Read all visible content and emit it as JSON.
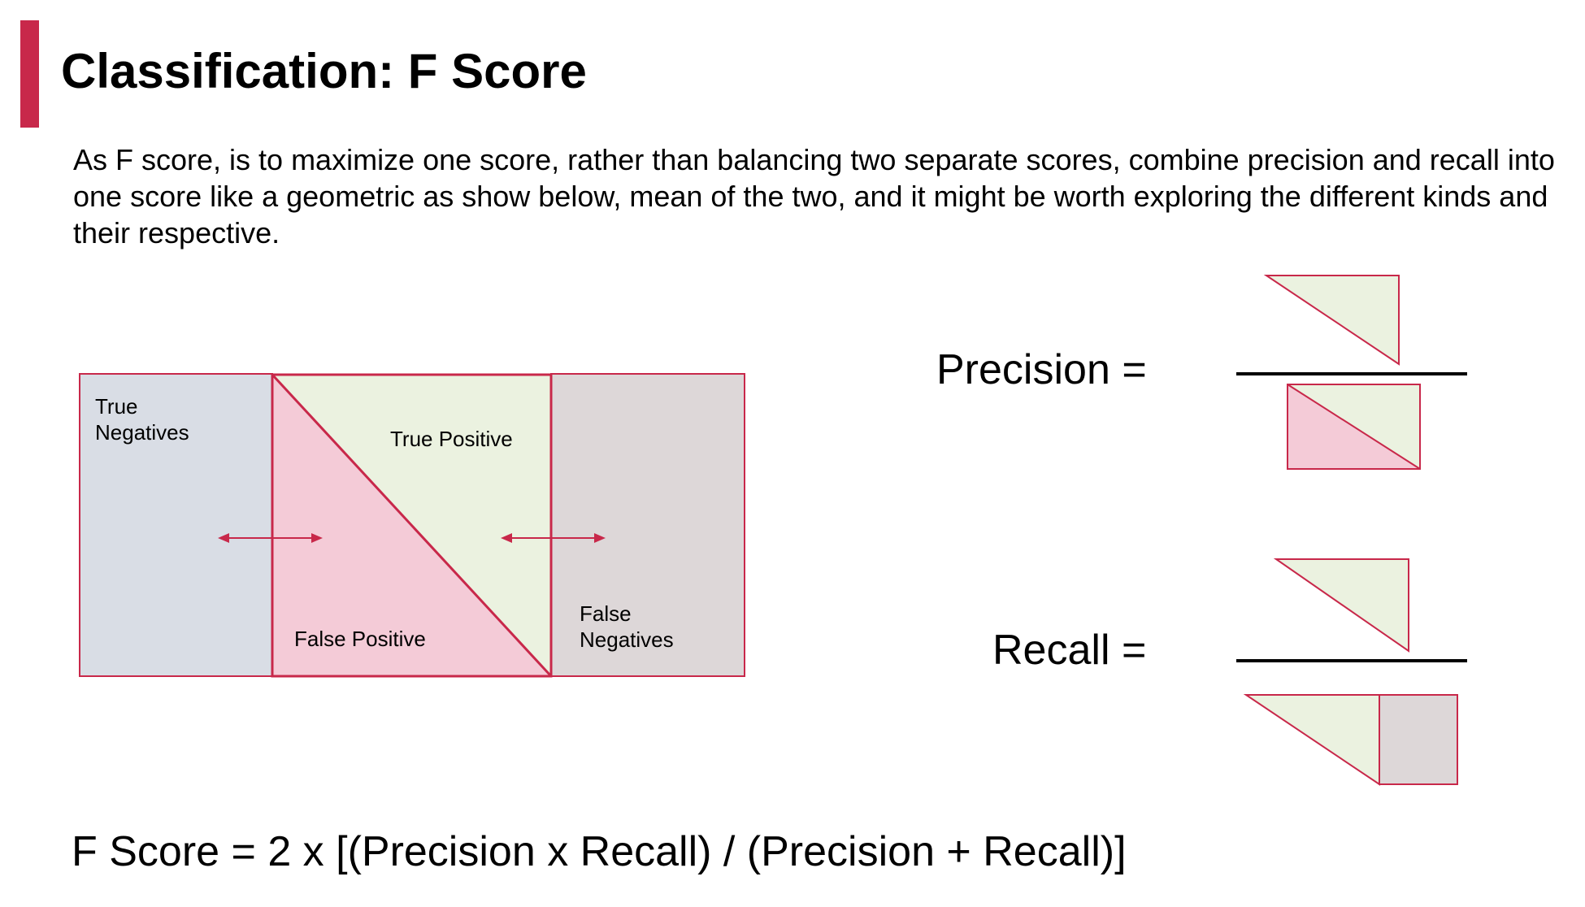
{
  "slide": {
    "title": "Classification: F Score",
    "description": "As F score, is to maximize one score, rather than balancing two separate scores, combine precision and recall into one score like a geometric as show below, mean of the two, and it might be worth exploring the different kinds and their respective.",
    "formula": "F Score = 2 x [(Precision x Recall) / (Precision + Recall)]"
  },
  "diagram": {
    "region_labels": {
      "true_negatives_line1": "True",
      "true_negatives_line2": "Negatives",
      "true_positive": "True Positive",
      "false_positive": "False Positive",
      "false_negatives_line1": "False",
      "false_negatives_line2": "Negatives"
    },
    "precision_label": "Precision =",
    "recall_label": "Recall ="
  },
  "colors": {
    "accent": "#c8284a",
    "true_negatives_fill": "#d9dde5",
    "true_positive_fill": "#ebf2e0",
    "false_positive_fill": "#f4cbd7",
    "false_negatives_fill": "#ddd7d8",
    "outline": "#c8284a",
    "fraction_line": "#000000"
  }
}
